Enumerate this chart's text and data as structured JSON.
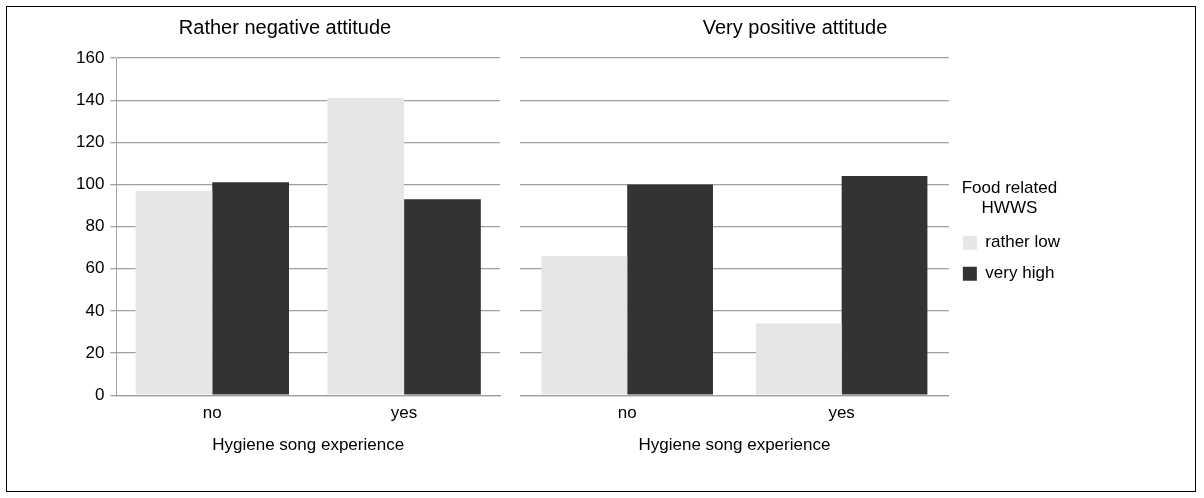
{
  "chart_data": [
    {
      "type": "bar",
      "title": "Rather negative attitude",
      "xlabel": "Hygiene song experience",
      "categories": [
        "no",
        "yes"
      ],
      "series": [
        {
          "color": "#e6e6e6",
          "values": [
            97,
            141
          ]
        },
        {
          "color": "#333333",
          "values": [
            101,
            93
          ]
        }
      ],
      "ylim": [
        0,
        160
      ],
      "yticks": [
        0,
        20,
        40,
        60,
        80,
        100,
        120,
        140,
        160
      ],
      "grid": "y",
      "legend": false
    },
    {
      "type": "bar",
      "title": "Very positive attitude",
      "xlabel": "Hygiene song experience",
      "categories": [
        "no",
        "yes"
      ],
      "series": [
        {
          "name": "rather low",
          "color": "#e6e6e6",
          "values": [
            66,
            34
          ]
        },
        {
          "name": "very high",
          "color": "#333333",
          "values": [
            100,
            104
          ]
        }
      ],
      "ylim": [
        0,
        160
      ],
      "yticks": [
        0,
        20,
        40,
        60,
        80,
        100,
        120,
        140,
        160
      ],
      "grid": "y",
      "legend": "right",
      "legend_title": "Food related HWWS",
      "tick_labels": "x"
    }
  ]
}
